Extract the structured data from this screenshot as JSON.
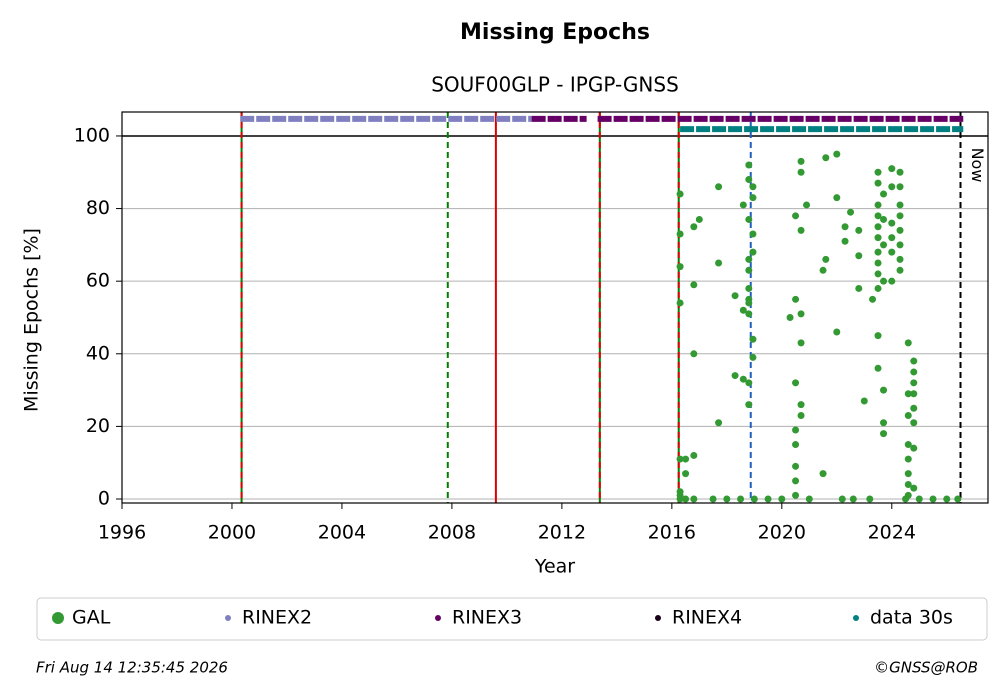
{
  "chart_data": {
    "type": "scatter",
    "title": "Missing Epochs",
    "subtitle": "SOUF00GLP - IPGP-GNSS",
    "x_label": "Year",
    "y_label": "Missing Epochs [%]",
    "xlim": [
      1996,
      2027.5
    ],
    "ylim": [
      -1.1,
      106.6
    ],
    "xticks": [
      1996,
      2000,
      2004,
      2008,
      2012,
      2016,
      2020,
      2024
    ],
    "yticks": [
      0,
      20,
      40,
      60,
      80,
      100
    ],
    "grid": true,
    "hline": 100,
    "vlines": [
      {
        "x": 2000.35,
        "color": "#008000",
        "style": "solid"
      },
      {
        "x": 2000.35,
        "color": "#dd0000",
        "style": "dashed"
      },
      {
        "x": 2007.85,
        "color": "#008000",
        "style": "dashed"
      },
      {
        "x": 2009.6,
        "color": "#dd0000",
        "style": "solid"
      },
      {
        "x": 2013.38,
        "color": "#008000",
        "style": "solid"
      },
      {
        "x": 2013.38,
        "color": "#dd0000",
        "style": "dashed"
      },
      {
        "x": 2016.25,
        "color": "#008000",
        "style": "solid"
      },
      {
        "x": 2016.25,
        "color": "#dd0000",
        "style": "dashed"
      },
      {
        "x": 2018.87,
        "color": "#1f5fbf",
        "style": "dashed"
      },
      {
        "x": 2026.5,
        "color": "#000000",
        "style": "dashed"
      }
    ],
    "annotation": "Now",
    "series": [
      {
        "name": "GAL",
        "color": "#339933",
        "x": [
          2016.3,
          2016.3,
          2016.3,
          2016.3,
          2016.3,
          2016.3,
          2016.3,
          2016.3,
          2016.5,
          2016.5,
          2016.5,
          2016.8,
          2016.8,
          2016.8,
          2016.8,
          2016.8,
          2017.0,
          2017.7,
          2017.7,
          2017.7,
          2018.3,
          2018.3,
          2018.6,
          2018.6,
          2018.6,
          2018.8,
          2018.8,
          2018.8,
          2018.8,
          2018.8,
          2018.8,
          2018.8,
          2018.8,
          2018.8,
          2018.8,
          2018.8,
          2018.95,
          2018.95,
          2018.95,
          2018.95,
          2018.95,
          2018.95,
          2020.3,
          2020.5,
          2020.5,
          2020.5,
          2020.5,
          2020.5,
          2020.5,
          2020.5,
          2020.5,
          2020.7,
          2020.7,
          2020.7,
          2020.7,
          2020.7,
          2020.7,
          2020.7,
          2020.9,
          2021.5,
          2021.5,
          2021.6,
          2021.6,
          2022.0,
          2022.0,
          2022.0,
          2022.3,
          2022.3,
          2022.5,
          2022.8,
          2022.8,
          2022.8,
          2023.0,
          2023.3,
          2023.5,
          2023.5,
          2023.5,
          2023.5,
          2023.5,
          2023.5,
          2023.5,
          2023.5,
          2023.5,
          2023.5,
          2023.5,
          2023.5,
          2023.7,
          2023.7,
          2023.7,
          2023.7,
          2023.7,
          2023.7,
          2023.7,
          2024.0,
          2024.0,
          2024.0,
          2024.0,
          2024.0,
          2024.0,
          2024.3,
          2024.3,
          2024.3,
          2024.3,
          2024.3,
          2024.3,
          2024.3,
          2024.3,
          2024.6,
          2024.6,
          2024.6,
          2024.6,
          2024.6,
          2024.6,
          2024.6,
          2024.6,
          2024.8,
          2024.8,
          2024.8,
          2024.8,
          2024.8,
          2024.8,
          2024.8,
          2024.8,
          2017.5,
          2018.0,
          2018.5,
          2019.0,
          2019.5,
          2020.0,
          2021.0,
          2022.2,
          2022.6,
          2023.2,
          2024.5,
          2025.0,
          2025.5,
          2026.0,
          2026.4
        ],
        "values": [
          84,
          73,
          64,
          54,
          11,
          2,
          1,
          0,
          11,
          7,
          0,
          75,
          59,
          40,
          12,
          0,
          77,
          86,
          65,
          21,
          56,
          34,
          52,
          33,
          81,
          92,
          88,
          77,
          66,
          63,
          58,
          55,
          54,
          51,
          32,
          26,
          86,
          83,
          73,
          68,
          44,
          39,
          50,
          78,
          55,
          32,
          19,
          15,
          9,
          5,
          1,
          93,
          90,
          74,
          51,
          43,
          26,
          23,
          81,
          63,
          7,
          94,
          66,
          95,
          83,
          46,
          71,
          75,
          79,
          67,
          74,
          58,
          27,
          55,
          90,
          87,
          81,
          78,
          75,
          72,
          68,
          65,
          62,
          58,
          45,
          36,
          84,
          77,
          70,
          60,
          30,
          21,
          18,
          91,
          86,
          76,
          72,
          68,
          60,
          90,
          86,
          81,
          78,
          74,
          70,
          66,
          63,
          43,
          29,
          23,
          15,
          11,
          7,
          4,
          1,
          38,
          35,
          32,
          29,
          25,
          21,
          14,
          3,
          0,
          0,
          0,
          0,
          0,
          0,
          0,
          0,
          0,
          0,
          0,
          0,
          0,
          0,
          0
        ]
      },
      {
        "name": "RINEX2",
        "color": "#8080c0",
        "y": 104.7,
        "ranges": [
          [
            2000.3,
            2010.9
          ]
        ]
      },
      {
        "name": "RINEX3",
        "color": "#660066",
        "y": 104.7,
        "ranges": [
          [
            2010.9,
            2012.9
          ],
          [
            2013.3,
            2026.6
          ]
        ]
      },
      {
        "name": "RINEX4",
        "color": "#1a001a",
        "y": 104.7,
        "ranges": []
      },
      {
        "name": "data 30s",
        "color": "#008080",
        "y": 101.9,
        "ranges": [
          [
            2016.3,
            2026.6
          ]
        ]
      }
    ],
    "footer_left": "Fri Aug 14 12:35:45 2026",
    "footer_right": "©GNSS@ROB"
  }
}
